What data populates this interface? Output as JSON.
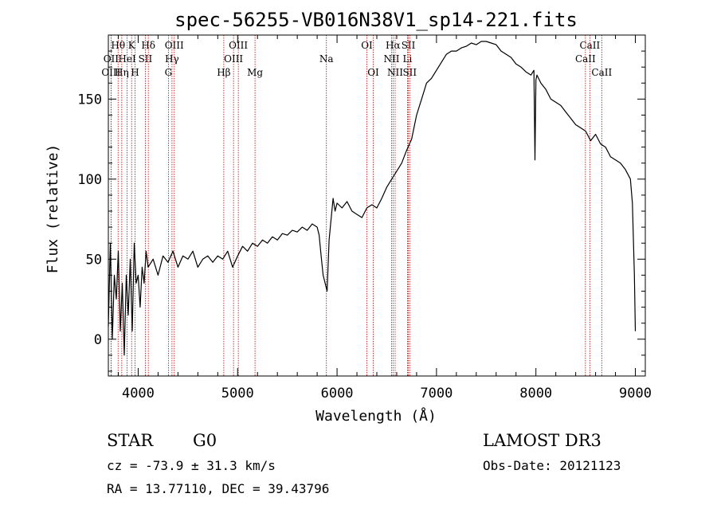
{
  "chart_data": {
    "type": "line",
    "title": "spec-56255-VB016N38V1_sp14-221.fits",
    "xlabel": "Wavelength (Å)",
    "ylabel": "Flux (relative)",
    "xlim": [
      3700,
      9100
    ],
    "ylim": [
      -23,
      190
    ],
    "xticks": [
      4000,
      5000,
      6000,
      7000,
      8000,
      9000
    ],
    "yticks": [
      0,
      50,
      100,
      150
    ],
    "series": [
      {
        "name": "flux",
        "x": [
          3700,
          3720,
          3740,
          3760,
          3780,
          3800,
          3820,
          3840,
          3860,
          3880,
          3900,
          3920,
          3940,
          3960,
          3980,
          4000,
          4020,
          4040,
          4060,
          4080,
          4100,
          4150,
          4200,
          4250,
          4300,
          4350,
          4400,
          4450,
          4500,
          4550,
          4600,
          4650,
          4700,
          4750,
          4800,
          4850,
          4900,
          4950,
          5000,
          5050,
          5100,
          5150,
          5200,
          5250,
          5300,
          5350,
          5400,
          5450,
          5500,
          5550,
          5600,
          5650,
          5700,
          5750,
          5800,
          5820,
          5840,
          5860,
          5880,
          5900,
          5920,
          5940,
          5960,
          5980,
          6000,
          6050,
          6100,
          6150,
          6200,
          6250,
          6300,
          6350,
          6400,
          6450,
          6500,
          6550,
          6600,
          6650,
          6700,
          6750,
          6800,
          6850,
          6900,
          6950,
          7000,
          7050,
          7100,
          7150,
          7200,
          7250,
          7300,
          7350,
          7400,
          7450,
          7500,
          7550,
          7600,
          7650,
          7700,
          7750,
          7800,
          7850,
          7900,
          7950,
          7980,
          7990,
          8000,
          8010,
          8050,
          8100,
          8150,
          8200,
          8250,
          8300,
          8350,
          8400,
          8450,
          8500,
          8550,
          8600,
          8650,
          8700,
          8750,
          8800,
          8850,
          8900,
          8950,
          8970,
          8990,
          9000
        ],
        "y": [
          8,
          60,
          0,
          40,
          25,
          55,
          5,
          35,
          -10,
          40,
          15,
          50,
          5,
          60,
          35,
          40,
          20,
          45,
          35,
          55,
          45,
          50,
          40,
          52,
          48,
          55,
          45,
          52,
          50,
          55,
          45,
          50,
          52,
          48,
          52,
          50,
          55,
          45,
          52,
          58,
          55,
          60,
          58,
          62,
          60,
          64,
          62,
          66,
          65,
          68,
          67,
          70,
          68,
          72,
          70,
          65,
          52,
          40,
          35,
          30,
          62,
          75,
          88,
          80,
          85,
          82,
          86,
          80,
          78,
          76,
          82,
          84,
          82,
          88,
          95,
          100,
          105,
          110,
          118,
          125,
          140,
          150,
          160,
          163,
          168,
          173,
          178,
          180,
          180,
          182,
          183,
          185,
          184,
          186,
          186,
          185,
          184,
          180,
          178,
          176,
          172,
          170,
          167,
          165,
          168,
          112,
          162,
          165,
          160,
          156,
          150,
          148,
          146,
          142,
          138,
          134,
          132,
          130,
          124,
          128,
          122,
          120,
          114,
          112,
          110,
          106,
          100,
          85,
          40,
          5
        ]
      }
    ],
    "line_markers": [
      {
        "label": "Hθ",
        "wavelength": 3798,
        "row": 1
      },
      {
        "label": "OII",
        "wavelength": 3727,
        "row": 2
      },
      {
        "label": "OIII",
        "wavelength": 3727,
        "row": 3
      },
      {
        "label": "HeI",
        "wavelength": 3889,
        "row": 2
      },
      {
        "label": "Hη",
        "wavelength": 3835,
        "row": 3
      },
      {
        "label": "K",
        "wavelength": 3934,
        "row": 1
      },
      {
        "label": "SII",
        "wavelength": 4072,
        "row": 2
      },
      {
        "label": "H",
        "wavelength": 3968,
        "row": 3
      },
      {
        "label": "Hδ",
        "wavelength": 4102,
        "row": 1
      },
      {
        "label": "OIII",
        "wavelength": 4363,
        "row": 1
      },
      {
        "label": "Hγ",
        "wavelength": 4340,
        "row": 2
      },
      {
        "label": "G",
        "wavelength": 4304,
        "row": 3
      },
      {
        "label": "Hβ",
        "wavelength": 4861,
        "row": 3
      },
      {
        "label": "OIII",
        "wavelength": 5007,
        "row": 1
      },
      {
        "label": "OIII",
        "wavelength": 4959,
        "row": 2
      },
      {
        "label": "Mg",
        "wavelength": 5175,
        "row": 3
      },
      {
        "label": "Na",
        "wavelength": 5893,
        "row": 2
      },
      {
        "label": "OI",
        "wavelength": 6300,
        "row": 1
      },
      {
        "label": "OI",
        "wavelength": 6364,
        "row": 3
      },
      {
        "label": "Hα",
        "wavelength": 6563,
        "row": 1
      },
      {
        "label": "SII",
        "wavelength": 6717,
        "row": 1
      },
      {
        "label": "NII",
        "wavelength": 6548,
        "row": 2
      },
      {
        "label": "Li",
        "wavelength": 6708,
        "row": 2
      },
      {
        "label": "NII",
        "wavelength": 6584,
        "row": 3
      },
      {
        "label": "SII",
        "wavelength": 6731,
        "row": 3
      },
      {
        "label": "CaII",
        "wavelength": 8542,
        "row": 1
      },
      {
        "label": "CaII",
        "wavelength": 8498,
        "row": 2
      },
      {
        "label": "CaII",
        "wavelength": 8662,
        "row": 3
      }
    ],
    "grid": false,
    "marker_color": "#c00000",
    "line_color": "#000000"
  },
  "footer": {
    "class_label": "STAR",
    "subclass": "G0",
    "redshift": "cz = -73.9 ± 31.3 km/s",
    "coords": "RA =  13.77110, DEC =  39.43796",
    "survey": "LAMOST DR3",
    "obs_date": "Obs-Date: 20121123"
  }
}
